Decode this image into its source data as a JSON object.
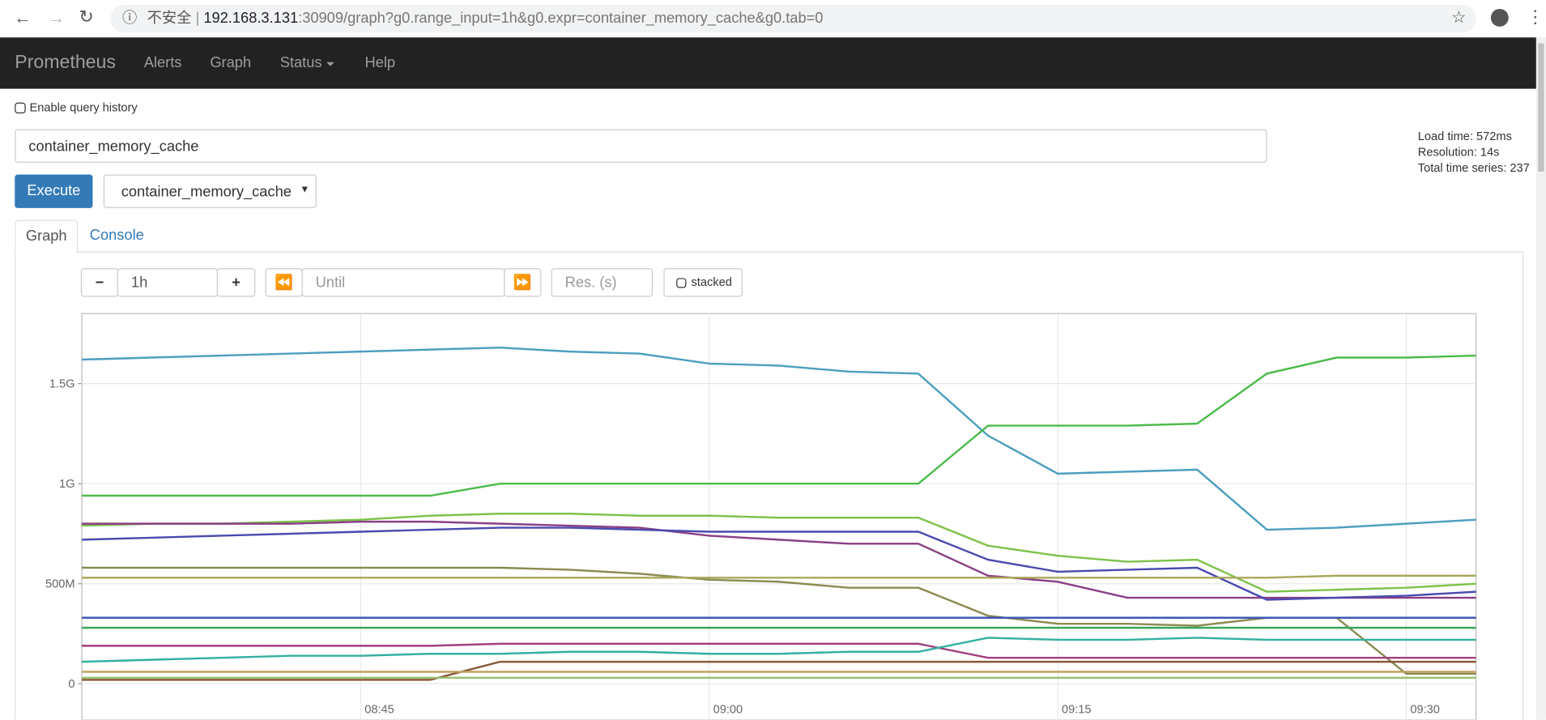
{
  "browser": {
    "security": "不安全",
    "url_host": "192.168.3.131",
    "url_rest": ":30909/graph?g0.range_input=1h&g0.expr=container_memory_cache&g0.tab=0"
  },
  "nav": {
    "brand": "Prometheus",
    "items": [
      "Alerts",
      "Graph",
      "Status",
      "Help"
    ]
  },
  "query_history": "Enable query history",
  "expression": "container_memory_cache",
  "execute": "Execute",
  "metric_select": "container_memory_cache",
  "stats": [
    "Load time: 572ms",
    "Resolution: 14s",
    "Total time series: 237"
  ],
  "tabs": [
    "Graph",
    "Console"
  ],
  "controls": {
    "range": "1h",
    "until": "Until",
    "resolution": "Res. (s)",
    "stacked": "stacked"
  },
  "chart_data": {
    "type": "line",
    "x": [
      "08:33",
      "08:36",
      "08:39",
      "08:42",
      "08:45",
      "08:48",
      "08:51",
      "08:54",
      "08:57",
      "09:00",
      "09:03",
      "09:06",
      "09:09",
      "09:12",
      "09:15",
      "09:18",
      "09:21",
      "09:24",
      "09:27",
      "09:30",
      "09:33"
    ],
    "xlim": [
      "08:33",
      "09:33"
    ],
    "xticks": [
      "08:45",
      "09:00",
      "09:15",
      "09:30"
    ],
    "ylim": [
      -180000000,
      1850000000
    ],
    "yticks": [
      {
        "value": 0,
        "label": "0"
      },
      {
        "value": 500000000,
        "label": "500M"
      },
      {
        "value": 1000000000,
        "label": "1G"
      },
      {
        "value": 1500000000,
        "label": "1.5G"
      }
    ],
    "grid": true,
    "series": [
      {
        "color": "#4c9fbf",
        "values": [
          1620000000,
          1630000000,
          1640000000,
          1650000000,
          1660000000,
          1670000000,
          1680000000,
          1660000000,
          1650000000,
          1600000000,
          1590000000,
          1560000000,
          1550000000,
          1240000000,
          1050000000,
          1060000000,
          1070000000,
          770000000,
          780000000,
          800000000,
          820000000
        ]
      },
      {
        "color": "#4cbb4c",
        "values": [
          940000000,
          940000000,
          940000000,
          940000000,
          940000000,
          940000000,
          1000000000,
          1000000000,
          1000000000,
          1000000000,
          1000000000,
          1000000000,
          1000000000,
          1290000000,
          1290000000,
          1290000000,
          1300000000,
          1550000000,
          1630000000,
          1630000000,
          1640000000
        ]
      },
      {
        "color": "#7dc24a",
        "values": [
          790000000,
          800000000,
          800000000,
          810000000,
          820000000,
          840000000,
          850000000,
          850000000,
          840000000,
          840000000,
          830000000,
          830000000,
          830000000,
          690000000,
          640000000,
          610000000,
          620000000,
          460000000,
          470000000,
          480000000,
          500000000
        ]
      },
      {
        "color": "#8a3f84",
        "values": [
          800000000,
          800000000,
          800000000,
          800000000,
          810000000,
          810000000,
          800000000,
          790000000,
          780000000,
          740000000,
          720000000,
          700000000,
          700000000,
          540000000,
          510000000,
          430000000,
          430000000,
          430000000,
          430000000,
          430000000,
          430000000
        ]
      },
      {
        "color": "#4a4ab0",
        "values": [
          720000000,
          730000000,
          740000000,
          750000000,
          760000000,
          770000000,
          780000000,
          780000000,
          770000000,
          760000000,
          760000000,
          760000000,
          760000000,
          620000000,
          560000000,
          570000000,
          580000000,
          420000000,
          430000000,
          440000000,
          460000000
        ]
      },
      {
        "color": "#8b8b52",
        "values": [
          580000000,
          580000000,
          580000000,
          580000000,
          580000000,
          580000000,
          580000000,
          570000000,
          550000000,
          520000000,
          510000000,
          480000000,
          480000000,
          340000000,
          300000000,
          300000000,
          290000000,
          330000000,
          330000000,
          50000000,
          50000000
        ]
      },
      {
        "color": "#a9a85a",
        "values": [
          530000000,
          530000000,
          530000000,
          530000000,
          530000000,
          530000000,
          530000000,
          530000000,
          530000000,
          530000000,
          530000000,
          530000000,
          530000000,
          530000000,
          530000000,
          530000000,
          530000000,
          530000000,
          540000000,
          540000000,
          540000000
        ]
      },
      {
        "color": "#3f58b5",
        "values": [
          330000000,
          330000000,
          330000000,
          330000000,
          330000000,
          330000000,
          330000000,
          330000000,
          330000000,
          330000000,
          330000000,
          330000000,
          330000000,
          330000000,
          330000000,
          330000000,
          330000000,
          330000000,
          330000000,
          330000000,
          330000000
        ]
      },
      {
        "color": "#3aa65a",
        "values": [
          280000000,
          280000000,
          280000000,
          280000000,
          280000000,
          280000000,
          280000000,
          280000000,
          280000000,
          280000000,
          280000000,
          280000000,
          280000000,
          280000000,
          280000000,
          280000000,
          280000000,
          280000000,
          280000000,
          280000000,
          280000000
        ]
      },
      {
        "color": "#a0407f",
        "values": [
          190000000,
          190000000,
          190000000,
          190000000,
          190000000,
          190000000,
          200000000,
          200000000,
          200000000,
          200000000,
          200000000,
          200000000,
          200000000,
          130000000,
          130000000,
          130000000,
          130000000,
          130000000,
          130000000,
          130000000,
          130000000
        ]
      },
      {
        "color": "#33b0a0",
        "values": [
          110000000,
          120000000,
          130000000,
          140000000,
          140000000,
          150000000,
          150000000,
          160000000,
          160000000,
          150000000,
          150000000,
          160000000,
          160000000,
          230000000,
          220000000,
          220000000,
          230000000,
          220000000,
          220000000,
          220000000,
          220000000
        ]
      },
      {
        "color": "#8a5a3a",
        "values": [
          20000000,
          20000000,
          20000000,
          20000000,
          20000000,
          20000000,
          110000000,
          110000000,
          110000000,
          110000000,
          110000000,
          110000000,
          110000000,
          110000000,
          110000000,
          110000000,
          110000000,
          110000000,
          110000000,
          110000000,
          110000000
        ]
      },
      {
        "color": "#c0a060",
        "values": [
          60000000,
          60000000,
          60000000,
          60000000,
          60000000,
          60000000,
          60000000,
          60000000,
          60000000,
          60000000,
          60000000,
          60000000,
          60000000,
          60000000,
          60000000,
          60000000,
          60000000,
          60000000,
          60000000,
          60000000,
          60000000
        ]
      },
      {
        "color": "#9ac070",
        "values": [
          30000000,
          30000000,
          30000000,
          30000000,
          30000000,
          30000000,
          30000000,
          30000000,
          30000000,
          30000000,
          30000000,
          30000000,
          30000000,
          30000000,
          30000000,
          30000000,
          30000000,
          30000000,
          30000000,
          30000000,
          30000000
        ]
      }
    ]
  }
}
